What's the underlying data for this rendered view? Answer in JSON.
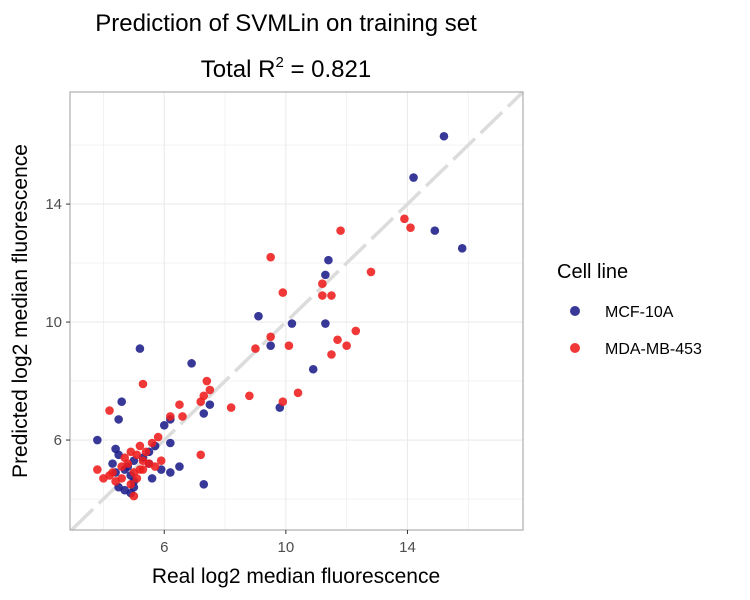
{
  "title_main": "Prediction of SVMLin on training set",
  "title_sub_prefix": "Total R",
  "title_sub_sup": "2",
  "title_sub_suffix": " = 0.821",
  "colors": {
    "MCF-10A": "#1c1c8a",
    "MDA-MB-453": "#ee1c1c",
    "identity_line": "#dcdcdc",
    "grid": "#ebebeb",
    "panel_border": "#b3b3b3"
  },
  "chart_data": {
    "type": "scatter",
    "title": "Prediction of SVMLin on training set",
    "subtitle": "Total R2 = 0.821",
    "xlabel": "Real log2 median fluorescence",
    "ylabel": "Predicted log2 median fluorescence",
    "xlim": [
      2.9,
      17.8
    ],
    "ylim": [
      2.95,
      17.8
    ],
    "xticks": [
      6,
      10,
      14
    ],
    "yticks": [
      6,
      10,
      14
    ],
    "x_tick_labels": [
      "6",
      "10",
      "14"
    ],
    "y_tick_labels": [
      "6",
      "10",
      "14"
    ],
    "grid": true,
    "identity_line": true,
    "legend_title": "Cell line",
    "legend_position": "right",
    "series": [
      {
        "name": "MCF-10A",
        "points": [
          [
            15.2,
            16.3
          ],
          [
            14.2,
            14.9
          ],
          [
            14.9,
            13.1
          ],
          [
            15.8,
            12.5
          ],
          [
            11.4,
            12.1
          ],
          [
            11.3,
            11.6
          ],
          [
            11.3,
            9.95
          ],
          [
            10.2,
            9.95
          ],
          [
            9.1,
            10.2
          ],
          [
            9.5,
            9.2
          ],
          [
            10.9,
            8.4
          ],
          [
            9.8,
            7.1
          ],
          [
            6.9,
            8.6
          ],
          [
            7.5,
            7.2
          ],
          [
            7.3,
            6.9
          ],
          [
            6.2,
            6.7
          ],
          [
            6.0,
            6.5
          ],
          [
            6.2,
            5.9
          ],
          [
            5.2,
            9.1
          ],
          [
            4.6,
            7.3
          ],
          [
            4.5,
            6.7
          ],
          [
            3.8,
            6.0
          ],
          [
            4.4,
            5.7
          ],
          [
            4.5,
            5.5
          ],
          [
            4.3,
            5.2
          ],
          [
            4.8,
            5.1
          ],
          [
            5.0,
            5.3
          ],
          [
            5.3,
            5.4
          ],
          [
            5.5,
            5.6
          ],
          [
            5.7,
            5.8
          ],
          [
            5.5,
            5.2
          ],
          [
            5.9,
            5.0
          ],
          [
            5.6,
            4.7
          ],
          [
            4.9,
            4.8
          ],
          [
            5.0,
            4.6
          ],
          [
            5.0,
            4.4
          ],
          [
            4.7,
            4.3
          ],
          [
            4.5,
            4.4
          ],
          [
            4.9,
            4.2
          ],
          [
            6.2,
            4.9
          ],
          [
            6.5,
            5.1
          ],
          [
            7.3,
            4.5
          ],
          [
            4.4,
            4.9
          ],
          [
            4.7,
            5.0
          ]
        ]
      },
      {
        "name": "MDA-MB-453",
        "points": [
          [
            13.9,
            13.5
          ],
          [
            14.1,
            13.2
          ],
          [
            12.8,
            11.7
          ],
          [
            11.8,
            13.1
          ],
          [
            9.5,
            12.2
          ],
          [
            9.9,
            11.0
          ],
          [
            11.2,
            11.3
          ],
          [
            11.5,
            10.9
          ],
          [
            11.2,
            10.9
          ],
          [
            12.3,
            9.7
          ],
          [
            11.7,
            9.4
          ],
          [
            12.0,
            9.2
          ],
          [
            11.5,
            8.9
          ],
          [
            10.1,
            9.2
          ],
          [
            9.0,
            9.1
          ],
          [
            9.5,
            9.5
          ],
          [
            10.4,
            7.6
          ],
          [
            9.9,
            7.3
          ],
          [
            8.8,
            7.5
          ],
          [
            8.2,
            7.1
          ],
          [
            7.4,
            8.0
          ],
          [
            7.5,
            7.7
          ],
          [
            7.3,
            7.5
          ],
          [
            7.2,
            7.3
          ],
          [
            6.5,
            7.2
          ],
          [
            6.6,
            6.8
          ],
          [
            6.2,
            6.8
          ],
          [
            5.3,
            7.9
          ],
          [
            4.2,
            7.0
          ],
          [
            5.8,
            6.1
          ],
          [
            5.6,
            5.9
          ],
          [
            5.2,
            5.8
          ],
          [
            5.4,
            5.6
          ],
          [
            5.3,
            5.3
          ],
          [
            5.1,
            5.5
          ],
          [
            4.9,
            5.6
          ],
          [
            4.7,
            5.4
          ],
          [
            4.6,
            5.1
          ],
          [
            4.8,
            5.2
          ],
          [
            4.3,
            4.9
          ],
          [
            3.8,
            5.0
          ],
          [
            4.0,
            4.7
          ],
          [
            4.2,
            4.8
          ],
          [
            4.4,
            4.6
          ],
          [
            5.0,
            4.9
          ],
          [
            5.2,
            5.0
          ],
          [
            5.5,
            5.2
          ],
          [
            5.7,
            5.1
          ],
          [
            5.9,
            5.3
          ],
          [
            5.1,
            4.7
          ],
          [
            4.9,
            4.5
          ],
          [
            5.0,
            4.1
          ],
          [
            7.2,
            5.5
          ],
          [
            4.6,
            4.7
          ],
          [
            5.3,
            5.0
          ]
        ]
      }
    ]
  }
}
